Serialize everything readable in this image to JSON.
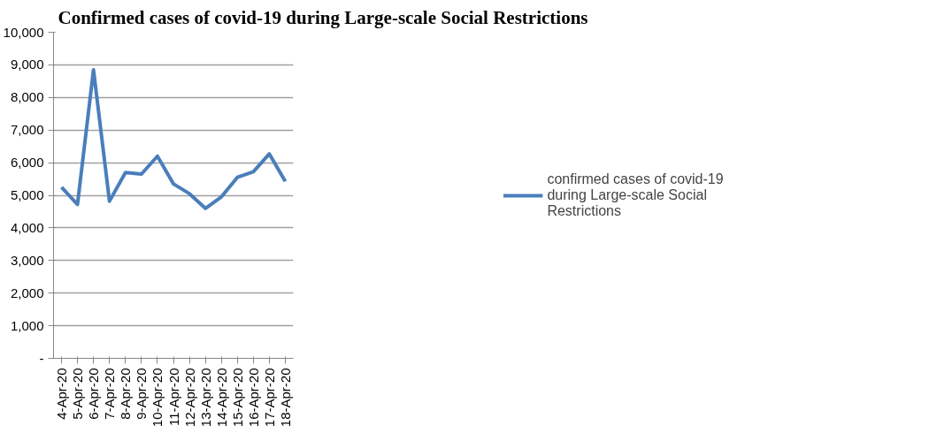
{
  "chart_data": {
    "type": "line",
    "title": "Confirmed cases of covid-19 during Large-scale Social Restrictions",
    "categories": [
      "4-Apr-20",
      "5-Apr-20",
      "6-Apr-20",
      "7-Apr-20",
      "8-Apr-20",
      "9-Apr-20",
      "10-Apr-20",
      "11-Apr-20",
      "12-Apr-20",
      "13-Apr-20",
      "14-Apr-20",
      "15-Apr-20",
      "16-Apr-20",
      "17-Apr-20",
      "18-Apr-20"
    ],
    "series": [
      {
        "name": "confirmed cases of covid-19 during Large-scale Social Restrictions",
        "color": "#4a7ebb",
        "values": [
          5250,
          4720,
          8850,
          4820,
          5700,
          5650,
          6200,
          5350,
          5050,
          4600,
          4950,
          5550,
          5720,
          6270,
          5430
        ]
      }
    ],
    "ylim": [
      0,
      10000
    ],
    "yticks": [
      {
        "value": 0,
        "label": "-"
      },
      {
        "value": 1000,
        "label": "1,000"
      },
      {
        "value": 2000,
        "label": "2,000"
      },
      {
        "value": 3000,
        "label": "3,000"
      },
      {
        "value": 4000,
        "label": "4,000"
      },
      {
        "value": 5000,
        "label": "5,000"
      },
      {
        "value": 6000,
        "label": "6,000"
      },
      {
        "value": 7000,
        "label": "7,000"
      },
      {
        "value": 8000,
        "label": "8,000"
      },
      {
        "value": 9000,
        "label": "9,000"
      },
      {
        "value": 10000,
        "label": "10,000"
      }
    ],
    "grid": "y",
    "legend": "right",
    "marker": "none",
    "line_style": "solid"
  }
}
